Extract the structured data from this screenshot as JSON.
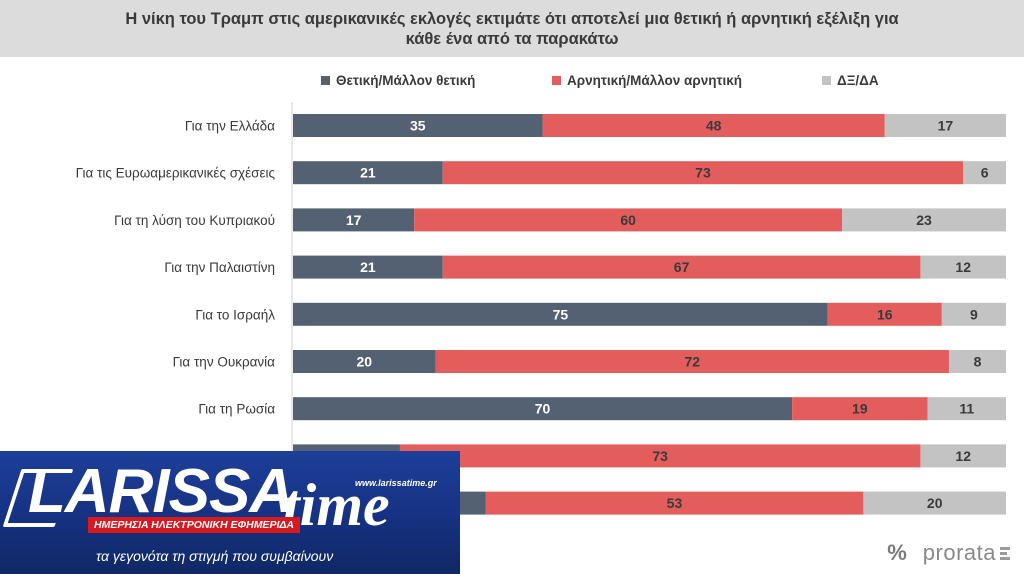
{
  "header": {
    "title": "Η νίκη του Τραμπ στις αμερικανικές εκλογές εκτιμάτε ότι αποτελεί μια θετική ή αρνητική εξέλιξη για κάθε ένα από τα παρακάτω"
  },
  "colors": {
    "positive": "#546172",
    "negative": "#e35d5d",
    "dk": "#c3c3c3"
  },
  "chart_data": {
    "type": "bar",
    "orientation": "horizontal",
    "stacked": true,
    "title": "Η νίκη του Τραμπ στις αμερικανικές εκλογές εκτιμάτε ότι αποτελεί μια θετική ή αρνητική εξέλιξη για κάθε ένα από τα παρακάτω",
    "legend_position": "top",
    "categories": [
      "Για την Ελλάδα",
      "Για τις Ευρωαμερικανικές σχέσεις",
      "Για τη λύση του Κυπριακού",
      "Για την Παλαιστίνη",
      "Για το Ισραήλ",
      "Για την Ουκρανία",
      "Για τη Ρωσία",
      "",
      ""
    ],
    "series": [
      {
        "name": "Θετική/Μάλλον θετική",
        "values": [
          35,
          21,
          17,
          21,
          75,
          20,
          70,
          15,
          27
        ]
      },
      {
        "name": "Αρνητική/Μάλλον αρνητική",
        "values": [
          48,
          73,
          60,
          67,
          16,
          72,
          19,
          73,
          53
        ]
      },
      {
        "name": "ΔΞ/ΔΑ",
        "values": [
          17,
          6,
          23,
          12,
          9,
          8,
          11,
          12,
          20
        ]
      }
    ],
    "xlim": [
      0,
      100
    ]
  },
  "logo": {
    "main": "LARISSA",
    "time": "time",
    "url": "www.larissatime.gr",
    "ribbon": "ΗΜΕΡΗΣΙΑ ΗΛΕΚΤΡΟΝΙΚΗ ΕΦΗΜΕΡΙΔΑ",
    "slogan": "τα γεγονότα τη στιγμή που συμβαίνουν"
  },
  "brand": {
    "symbol": "%",
    "name": "prorata"
  }
}
